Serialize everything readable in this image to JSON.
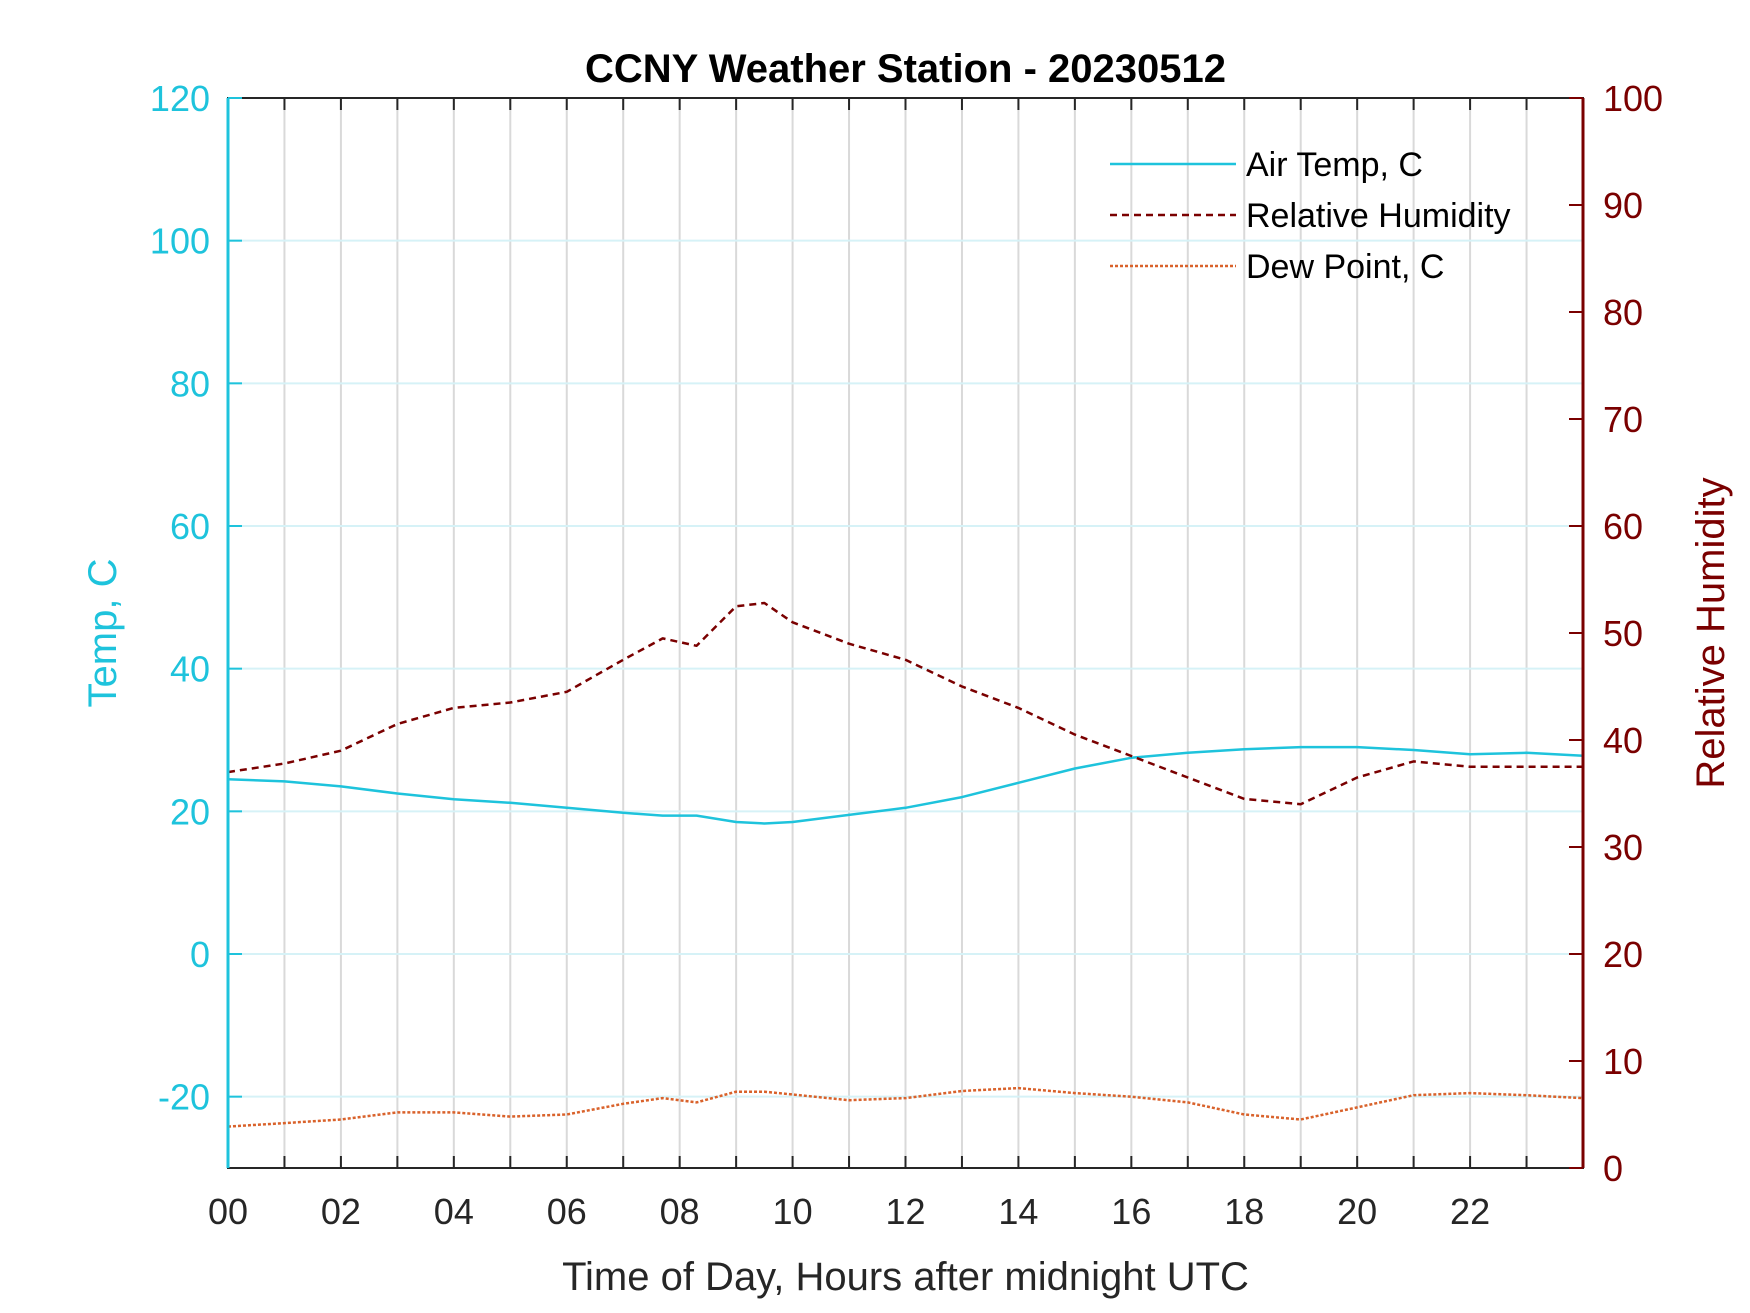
{
  "chart_data": {
    "type": "line",
    "title": "CCNY Weather Station - 20230512",
    "xlabel": "Time of Day, Hours after midnight UTC",
    "ylabel_left": "Temp, C",
    "ylabel_right": "Relative Humidity",
    "xlim": [
      0,
      24
    ],
    "ylim_left": [
      -30,
      120
    ],
    "ylim_right": [
      0,
      100
    ],
    "x_ticks": [
      0,
      2,
      4,
      6,
      8,
      10,
      12,
      14,
      16,
      18,
      20,
      22
    ],
    "x_tick_labels": [
      "00",
      "02",
      "04",
      "06",
      "08",
      "10",
      "12",
      "14",
      "16",
      "18",
      "20",
      "22"
    ],
    "y_left_ticks": [
      -20,
      0,
      20,
      40,
      60,
      80,
      100,
      120
    ],
    "y_left_tick_labels": [
      "-20",
      "0",
      "20",
      "40",
      "60",
      "80",
      "100",
      "120"
    ],
    "y_right_ticks": [
      0,
      10,
      20,
      30,
      40,
      50,
      60,
      70,
      80,
      90,
      100
    ],
    "y_right_tick_labels": [
      "0",
      "10",
      "20",
      "30",
      "40",
      "50",
      "60",
      "70",
      "80",
      "90",
      "100"
    ],
    "grid": true,
    "legend_position": "top-right",
    "colors": {
      "left_axis": "#1ec3dc",
      "right_axis": "#7a0000",
      "air_temp": "#1ec3dc",
      "relative_humidity": "#7a0000",
      "dew_point": "#d9622b",
      "grid_vertical": "#d9d9d9",
      "grid_horizontal": "#d6f2f7"
    },
    "x": [
      0,
      1,
      2,
      3,
      4,
      5,
      6,
      7,
      7.7,
      8.3,
      9,
      9.5,
      10,
      11,
      12,
      13,
      14,
      15,
      16,
      17,
      18,
      19,
      20,
      21,
      22,
      23,
      24
    ],
    "series": [
      {
        "name": "Air Temp, C",
        "axis": "left",
        "style": "solid",
        "values": [
          24.5,
          24.2,
          23.5,
          22.5,
          21.7,
          21.2,
          20.5,
          19.8,
          19.4,
          19.4,
          18.5,
          18.3,
          18.5,
          19.5,
          20.5,
          22,
          24,
          26,
          27.5,
          28.2,
          28.7,
          29,
          29,
          28.6,
          28,
          28.2,
          27.8
        ]
      },
      {
        "name": "Relative Humidity",
        "axis": "right",
        "style": "dashed",
        "values": [
          37,
          37.8,
          39,
          41.5,
          43,
          43.5,
          44.5,
          47.5,
          49.5,
          48.8,
          52.5,
          52.8,
          51,
          49,
          47.5,
          45,
          43,
          40.5,
          38.5,
          36.5,
          34.5,
          34,
          36.5,
          38,
          37.5,
          37.5,
          37.5
        ]
      },
      {
        "name": "Dew Point, C",
        "axis": "left",
        "style": "dotted",
        "values": [
          -24.2,
          -23.7,
          -23.2,
          -22.2,
          -22.2,
          -22.8,
          -22.5,
          -21,
          -20.2,
          -20.8,
          -19.3,
          -19.3,
          -19.7,
          -20.5,
          -20.2,
          -19.2,
          -18.8,
          -19.5,
          -20,
          -20.8,
          -22.5,
          -23.2,
          -21.5,
          -19.8,
          -19.5,
          -19.8,
          -20.2
        ]
      }
    ]
  }
}
